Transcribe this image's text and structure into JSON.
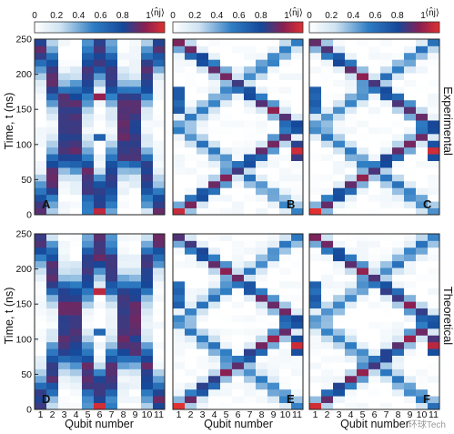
{
  "chart_data": {
    "type": "heatmap",
    "colorbar": {
      "label": "⟨n̂j⟩",
      "ticks": [
        "0",
        "0.2",
        "0.4",
        "0.6",
        "0.8",
        "1"
      ],
      "range": [
        0,
        1
      ],
      "colors": [
        "#ffffff",
        "#cfe3f2",
        "#2f7ec4",
        "#15489a",
        "#8a1f52",
        "#e03030"
      ]
    },
    "x_axis": {
      "label": "Qubit number",
      "ticks": [
        "1",
        "2",
        "3",
        "4",
        "5",
        "6",
        "7",
        "8",
        "9",
        "10",
        "11"
      ]
    },
    "y_axis": {
      "label": "Time, t (ns)",
      "ticks": [
        "0",
        "50",
        "100",
        "150",
        "200",
        "250"
      ],
      "range": [
        0,
        250
      ],
      "time_steps": 26
    },
    "row_labels": [
      "Experimental",
      "Theoretical"
    ],
    "panels": [
      {
        "label": "A",
        "pattern": "center",
        "source": 6
      },
      {
        "label": "B",
        "pattern": "cross",
        "source": 1
      },
      {
        "label": "C",
        "pattern": "cross",
        "source": 1
      },
      {
        "label": "D",
        "pattern": "center",
        "source": 6
      },
      {
        "label": "E",
        "pattern": "cross",
        "source": 1
      },
      {
        "label": "F",
        "pattern": "cross",
        "source": 1
      }
    ]
  },
  "watermark": "环球Tech"
}
